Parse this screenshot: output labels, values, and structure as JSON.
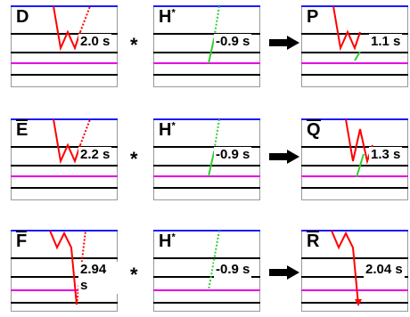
{
  "colors": {
    "top_line": "#1a1aff",
    "magenta_line": "#e600e6",
    "black_line": "#000000",
    "trace_red": "#ff0000",
    "trace_green": "#33cc33",
    "panel_border": "#999999"
  },
  "rows": [
    {
      "left": {
        "letter": "D",
        "overbar": false,
        "starred": false,
        "time": "2.0 s"
      },
      "operator": "*",
      "middle": {
        "letter": "H",
        "overbar": false,
        "starred": true,
        "time": "-0.9 s"
      },
      "right": {
        "letter": "P",
        "overbar": false,
        "starred": false,
        "time": "1.1 s"
      }
    },
    {
      "left": {
        "letter": "E",
        "overbar": true,
        "starred": false,
        "time": "2.2 s"
      },
      "operator": "*",
      "middle": {
        "letter": "H",
        "overbar": false,
        "starred": true,
        "time": "-0.9 s"
      },
      "right": {
        "letter": "Q",
        "overbar": true,
        "starred": false,
        "time": "1.3 s"
      }
    },
    {
      "left": {
        "letter": "F",
        "overbar": true,
        "starred": false,
        "time": "2.94 s"
      },
      "operator": "*",
      "middle": {
        "letter": "H",
        "overbar": false,
        "starred": true,
        "time": "-0.9 s"
      },
      "right": {
        "letter": "R",
        "overbar": true,
        "starred": false,
        "time": "2.04 s"
      }
    }
  ],
  "star_symbol": "*"
}
